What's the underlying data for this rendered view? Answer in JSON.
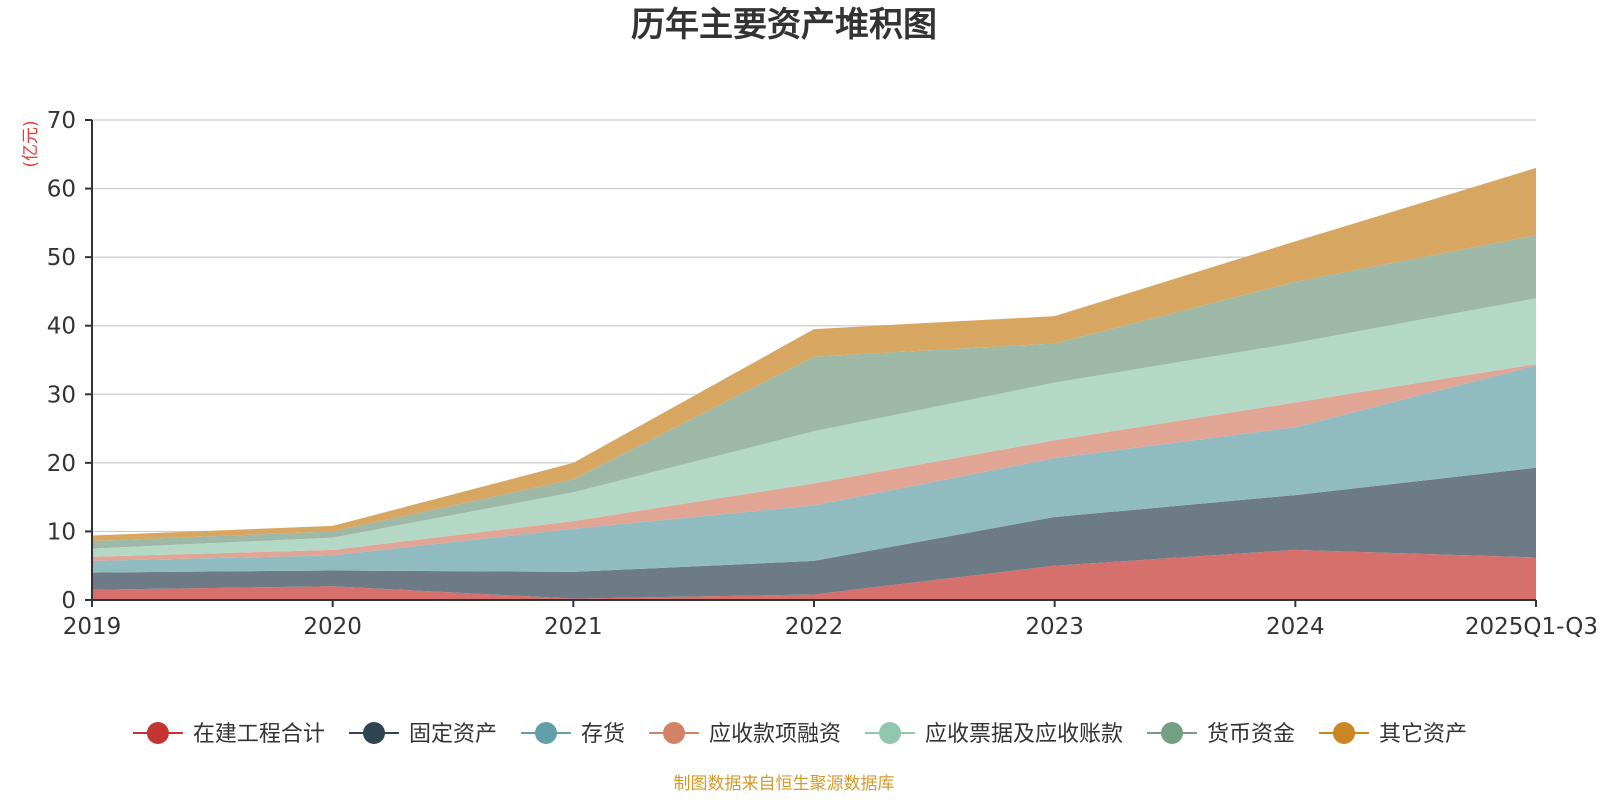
{
  "colors": {
    "axis": "#333333",
    "grid": "#cccccc",
    "unit": "#e53935",
    "source": "#d49a2a"
  },
  "chart_data": {
    "type": "area",
    "stacked": true,
    "title": "历年主要资产堆积图",
    "ylabel": "(亿元)",
    "xlabel": "",
    "ylim": [
      0,
      70
    ],
    "yticks": [
      0,
      10,
      20,
      30,
      40,
      50,
      60,
      70
    ],
    "grid": true,
    "legend_position": "bottom",
    "categories": [
      "2019",
      "2020",
      "2021",
      "2022",
      "2023",
      "2024",
      "2025Q1-Q3"
    ],
    "series": [
      {
        "name": "在建工程合计",
        "color": "#c23531",
        "fill": "#d5706d",
        "values": [
          1.5,
          2.0,
          0.2,
          0.8,
          5.0,
          7.3,
          6.2
        ]
      },
      {
        "name": "固定资产",
        "color": "#2f4554",
        "fill": "#6d7b86",
        "values": [
          2.5,
          2.3,
          3.9,
          4.9,
          7.1,
          8.0,
          13.1
        ]
      },
      {
        "name": "存货",
        "color": "#61a0a8",
        "fill": "#90bbc1",
        "values": [
          1.7,
          2.2,
          6.3,
          8.1,
          8.6,
          9.9,
          14.9
        ]
      },
      {
        "name": "应收款项融资",
        "color": "#d48265",
        "fill": "#e0a595",
        "values": [
          0.6,
          0.8,
          1.1,
          3.2,
          2.6,
          3.6,
          0.2
        ]
      },
      {
        "name": "应收票据及应收账款",
        "color": "#91c7ae",
        "fill": "#b3d8c6",
        "values": [
          1.2,
          1.8,
          4.2,
          7.6,
          8.4,
          8.7,
          9.6
        ]
      },
      {
        "name": "货币资金",
        "color": "#749f83",
        "fill": "#9db8a6",
        "values": [
          1.1,
          0.9,
          1.9,
          10.9,
          5.7,
          8.9,
          9.2
        ]
      },
      {
        "name": "其它资产",
        "color": "#ca8622",
        "fill": "#d7a660",
        "values": [
          0.8,
          0.8,
          2.4,
          4.0,
          4.0,
          5.9,
          9.8
        ]
      }
    ]
  },
  "source_note": "制图数据来自恒生聚源数据库"
}
